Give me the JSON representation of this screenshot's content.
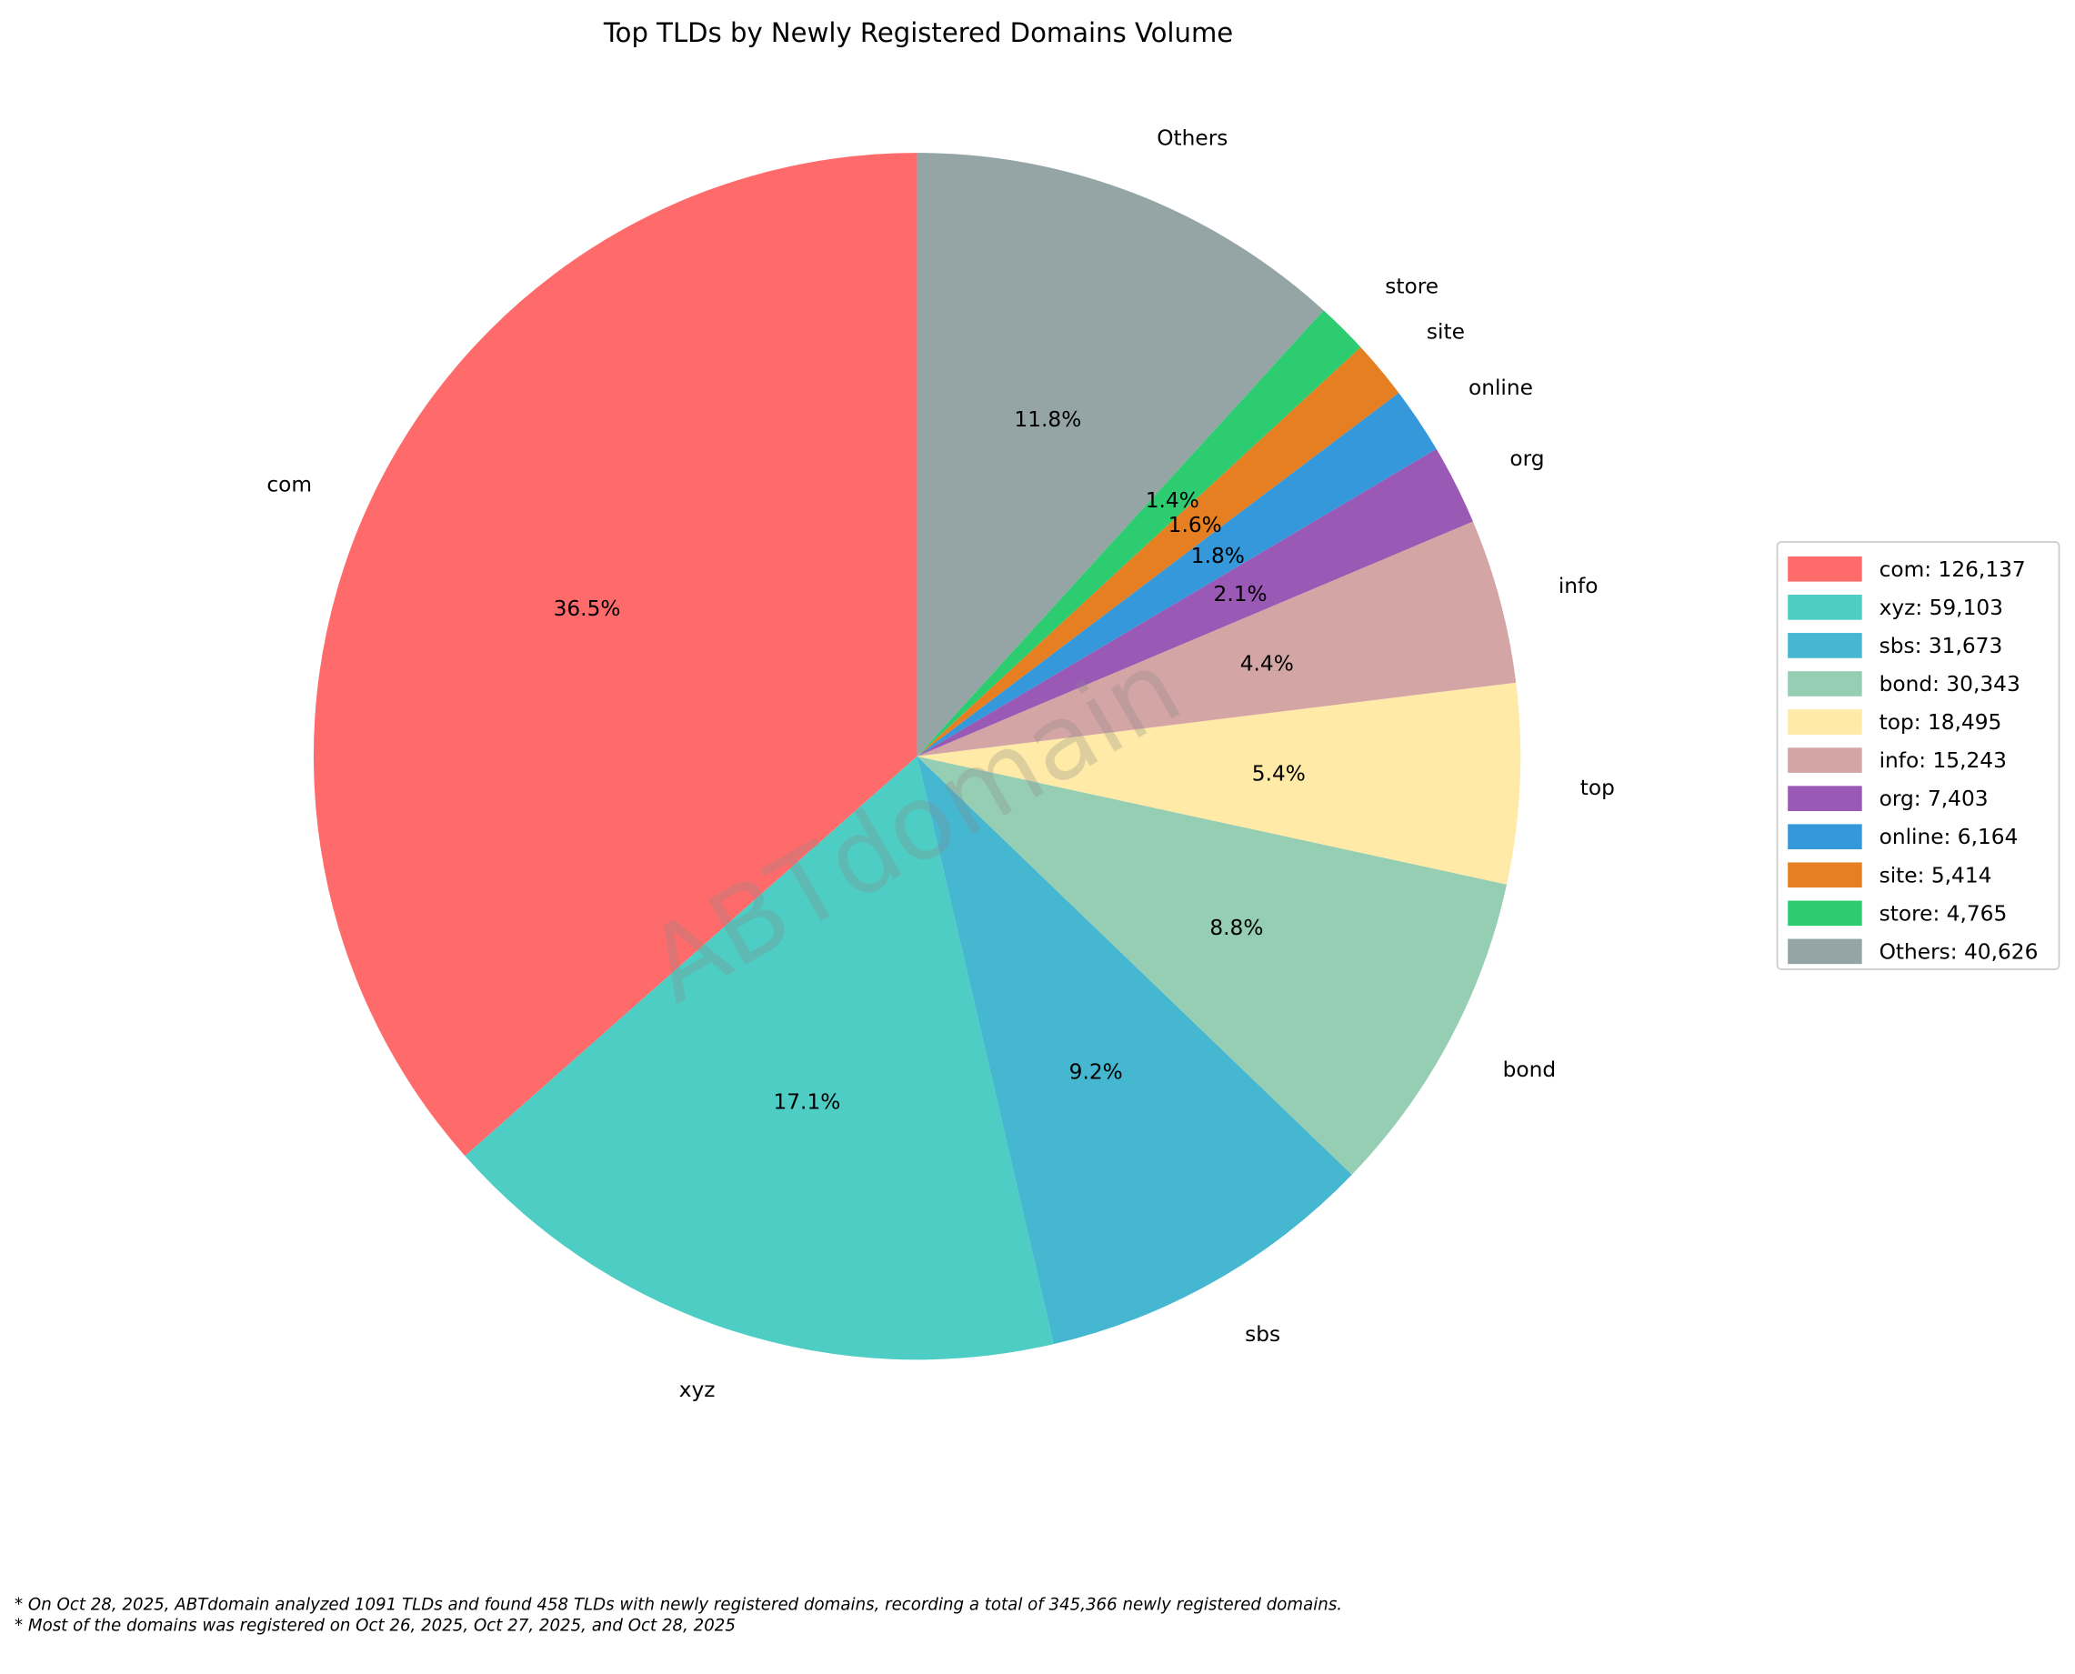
{
  "chart_data": {
    "type": "pie",
    "title": "Top TLDs by Newly Registered Domains Volume",
    "categories": [
      "com",
      "xyz",
      "sbs",
      "bond",
      "top",
      "info",
      "org",
      "online",
      "site",
      "store",
      "Others"
    ],
    "values": [
      126137,
      59103,
      31673,
      30343,
      18495,
      15243,
      7403,
      6164,
      5414,
      4765,
      40626
    ],
    "percent_labels": [
      "36.5%",
      "17.1%",
      "9.2%",
      "8.8%",
      "5.4%",
      "4.4%",
      "2.1%",
      "1.8%",
      "1.6%",
      "1.4%",
      "11.8%"
    ],
    "colors": [
      "#ff6b6b",
      "#4ecdc4",
      "#45b7d1",
      "#96ceb4",
      "#ffeaa7",
      "#d4a5a5",
      "#9b59b6",
      "#3498db",
      "#e67e22",
      "#2ecc71",
      "#95a5a6"
    ],
    "legend_labels": [
      "com: 126,137",
      "xyz: 59,103",
      "sbs: 31,673",
      "bond: 30,343",
      "top: 18,495",
      "info: 15,243",
      "org: 7,403",
      "online: 6,164",
      "site: 5,414",
      "store: 4,765",
      "Others: 40,626"
    ],
    "start_angle": 90,
    "direction": "counterclockwise",
    "legend_position": "right",
    "total": 345366
  },
  "watermark": "ABTdomain",
  "footnotes": [
    "* On Oct 28, 2025, ABTdomain analyzed 1091 TLDs and found 458 TLDs with newly registered domains, recording a total of 345,366 newly registered domains.",
    "* Most of the domains was registered on Oct 26, 2025, Oct 27, 2025, and Oct 28, 2025"
  ]
}
